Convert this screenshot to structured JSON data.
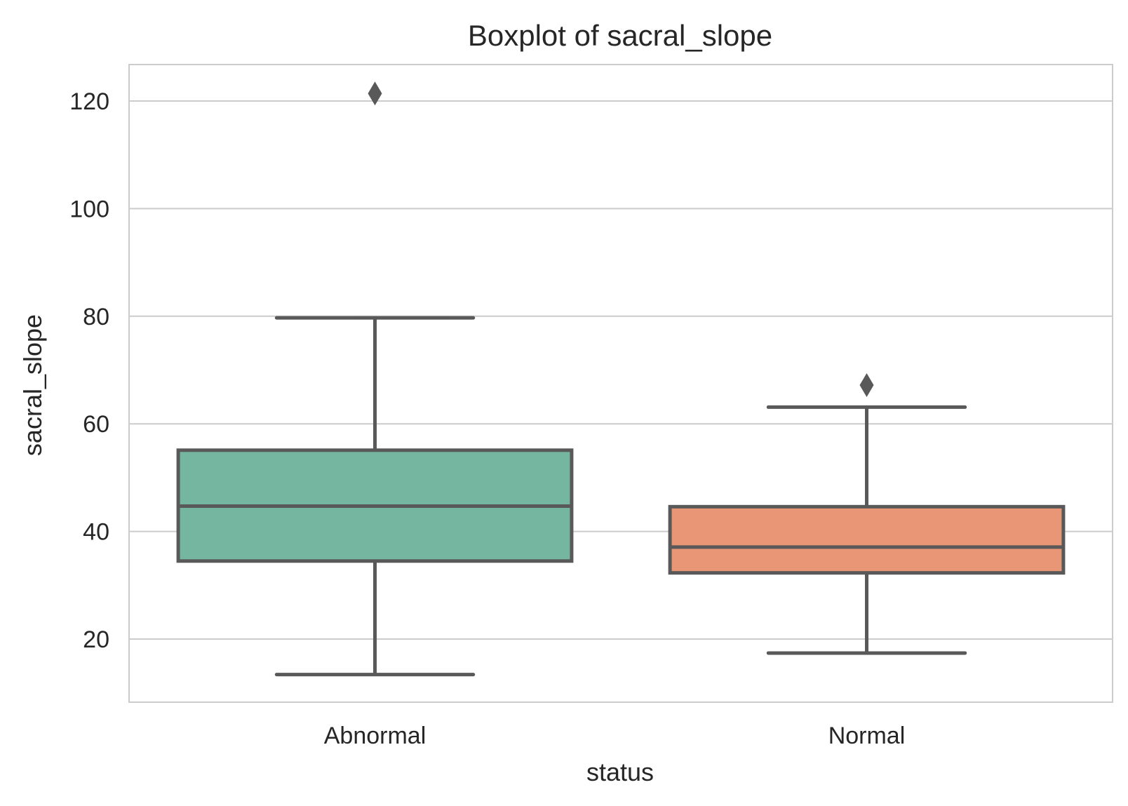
{
  "chart_data": {
    "type": "box",
    "title": "Boxplot of sacral_slope",
    "xlabel": "status",
    "ylabel": "sacral_slope",
    "ylim": [
      8,
      127
    ],
    "yticks": [
      20,
      40,
      60,
      80,
      100,
      120
    ],
    "grid": true,
    "categories": [
      "Abnormal",
      "Normal"
    ],
    "boxes": [
      {
        "category": "Abnormal",
        "whisker_low": 13.4,
        "q1": 34.5,
        "median": 44.7,
        "q3": 55.1,
        "whisker_high": 79.7,
        "outliers": [
          121.4
        ],
        "color": "#75b6a0"
      },
      {
        "category": "Normal",
        "whisker_low": 17.4,
        "q1": 32.3,
        "median": 37.1,
        "q3": 44.6,
        "whisker_high": 63.1,
        "outliers": [
          67.2
        ],
        "color": "#e89675"
      }
    ],
    "colors": {
      "grid": "#cccccc",
      "frame": "#cccccc",
      "box_edge": "#595959",
      "text": "#262626"
    }
  }
}
